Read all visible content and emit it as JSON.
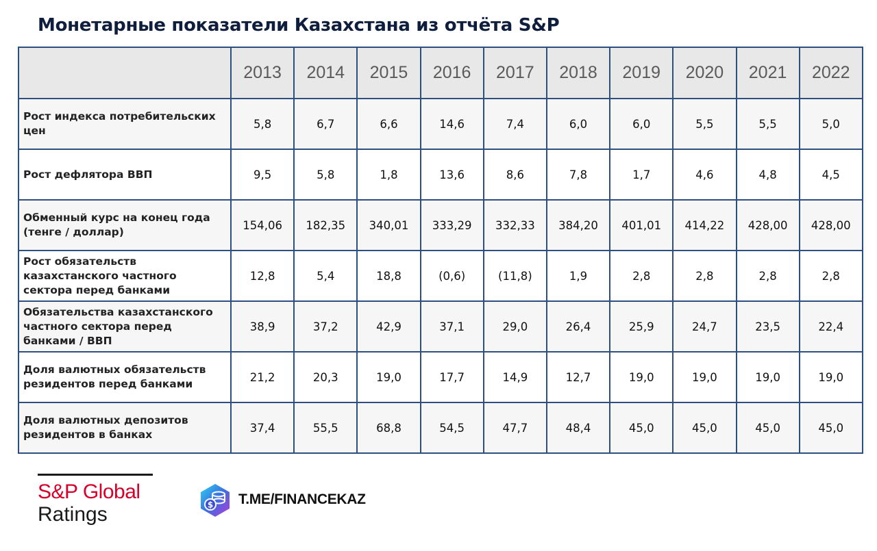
{
  "title": "Монетарные показатели Казахстана из отчёта S&P",
  "chart_data": {
    "type": "table",
    "columns": [
      "2013",
      "2014",
      "2015",
      "2016",
      "2017",
      "2018",
      "2019",
      "2020",
      "2021",
      "2022"
    ],
    "rows": [
      {
        "label": "Рост индекса потребительских цен",
        "values": [
          "5,8",
          "6,7",
          "6,6",
          "14,6",
          "7,4",
          "6,0",
          "6,0",
          "5,5",
          "5,5",
          "5,0"
        ]
      },
      {
        "label": "Рост дефлятора ВВП",
        "values": [
          "9,5",
          "5,8",
          "1,8",
          "13,6",
          "8,6",
          "7,8",
          "1,7",
          "4,6",
          "4,8",
          "4,5"
        ]
      },
      {
        "label": "Обменный курс на конец года (тенге / доллар)",
        "values": [
          "154,06",
          "182,35",
          "340,01",
          "333,29",
          "332,33",
          "384,20",
          "401,01",
          "414,22",
          "428,00",
          "428,00"
        ]
      },
      {
        "label": "Рост обязательств казахстанского частного сектора перед банками",
        "values": [
          "12,8",
          "5,4",
          "18,8",
          "(0,6)",
          "(11,8)",
          "1,9",
          "2,8",
          "2,8",
          "2,8",
          "2,8"
        ]
      },
      {
        "label": "Обязательства казахстанского частного сектора перед банками / ВВП",
        "values": [
          "38,9",
          "37,2",
          "42,9",
          "37,1",
          "29,0",
          "26,4",
          "25,9",
          "24,7",
          "23,5",
          "22,4"
        ]
      },
      {
        "label": "Доля валютных обязательств резидентов перед банками",
        "values": [
          "21,2",
          "20,3",
          "19,0",
          "17,7",
          "14,9",
          "12,7",
          "19,0",
          "19,0",
          "19,0",
          "19,0"
        ]
      },
      {
        "label": "Доля валютных депозитов резидентов в банках",
        "values": [
          "37,4",
          "55,5",
          "68,8",
          "54,5",
          "47,7",
          "48,4",
          "45,0",
          "45,0",
          "45,0",
          "45,0"
        ]
      }
    ]
  },
  "branding": {
    "line1": "S&P Global",
    "line2": "Ratings",
    "link": "T.ME/FINANCEKAZ",
    "brand_color": "#d6002a",
    "logo_icon": "coins-dollar-icon"
  }
}
